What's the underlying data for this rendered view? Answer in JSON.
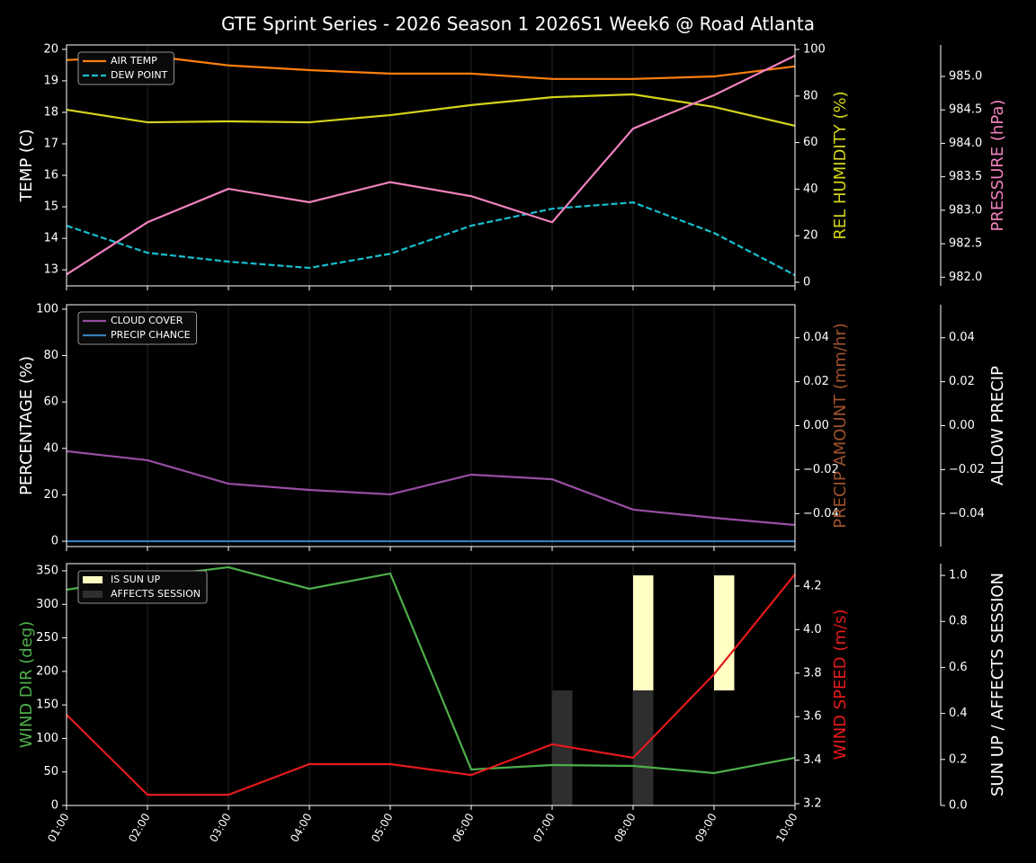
{
  "title": "GTE Sprint Series - 2026 Season 1 2026S1 Week6 @ Road Atlanta",
  "chart_data": [
    {
      "type": "line",
      "ylabel": "TEMP (C)",
      "ylabel_color": "#ffffff",
      "y2label": "REL HUMIDITY (%)",
      "y2label_color": "#d4d41c",
      "y3label": "PRESSURE (hPa)",
      "y3label_color": "#f081be",
      "ylim": [
        12.49,
        20.14
      ],
      "yticks": [
        13,
        14,
        15,
        16,
        17,
        18,
        19,
        20
      ],
      "y2lim": [
        -1.54,
        101.93
      ],
      "y2ticks": [
        0,
        20,
        40,
        60,
        80,
        100
      ],
      "y3lim": [
        981.87,
        985.47
      ],
      "y3ticks": [
        {
          "value": 982,
          "label": "982.0"
        },
        982.5,
        {
          "value": 983,
          "label": "983.0"
        },
        983.5,
        {
          "value": 984,
          "label": "984.0"
        },
        984.5,
        {
          "value": 985,
          "label": "985.0"
        }
      ],
      "legend": "upper left",
      "series": [
        {
          "name": "AIR TEMP",
          "color": "#ff7f0e",
          "axis": "y",
          "values": [
            19.66,
            19.8,
            19.49,
            19.34,
            19.23,
            19.23,
            19.06,
            19.06,
            19.14,
            19.46
          ]
        },
        {
          "name": "DEW POINT",
          "color": "#17becf",
          "linestyle": "dashed",
          "axis": "y",
          "values": [
            14.4,
            13.54,
            13.26,
            13.06,
            13.51,
            14.4,
            14.94,
            15.14,
            14.17,
            12.83
          ]
        },
        {
          "color": "#d4d41c",
          "axis": "y2",
          "values": [
            74.1,
            68.7,
            69.1,
            68.7,
            71.8,
            76.1,
            79.5,
            80.7,
            75.3,
            67.2
          ]
        },
        {
          "color": "#f081be",
          "axis": "y3",
          "values": [
            982.04,
            982.82,
            983.32,
            983.12,
            983.42,
            983.21,
            982.82,
            984.22,
            984.72,
            985.31
          ]
        }
      ]
    },
    {
      "type": "line",
      "ylabel": "PERCENTAGE (%)",
      "ylabel_color": "#ffffff",
      "y2label": "PRECIP AMOUNT (mm/hr)",
      "y2label_color": "#a0522d",
      "y3label": "ALLOW PRECIP",
      "y3label_color": "#ffffff",
      "ylim": [
        -2.3,
        101.9
      ],
      "yticks": [
        0,
        20,
        40,
        60,
        80,
        100
      ],
      "y2lim": [
        -0.055,
        0.055
      ],
      "y2ticks": [
        {
          "value": -0.04,
          "label": "−0.04"
        },
        {
          "value": -0.02,
          "label": "−0.02"
        },
        {
          "value": 0,
          "label": "0.00"
        },
        0.02,
        0.04
      ],
      "y3lim": [
        -0.055,
        0.055
      ],
      "y3ticks": [
        {
          "value": -0.04,
          "label": "−0.04"
        },
        {
          "value": -0.02,
          "label": "−0.02"
        },
        {
          "value": 0,
          "label": "0.00"
        },
        0.02,
        0.04
      ],
      "legend": "upper left",
      "series": [
        {
          "name": "CLOUD COVER",
          "color": "#984ea3",
          "axis": "y",
          "values": [
            38.8,
            34.9,
            24.8,
            22.1,
            20.2,
            28.7,
            26.7,
            13.6,
            10.1,
            7.0
          ]
        },
        {
          "name": "PRECIP CHANCE",
          "color": "#377eb8",
          "axis": "y",
          "values": [
            0,
            0,
            0,
            0,
            0,
            0,
            0,
            0,
            0,
            0
          ]
        }
      ]
    },
    {
      "type": "line",
      "ylabel": "WIND DIR (deg)",
      "ylabel_color": "#4daf4a",
      "y2label": "WIND SPEED (m/s)",
      "y2label_color": "#e41a1c",
      "y3label": "SUN UP / AFFECTS SESSION",
      "y3label_color": "#ffffff",
      "categories": [
        "01:00",
        "02:00",
        "03:00",
        "04:00",
        "05:00",
        "06:00",
        "07:00",
        "08:00",
        "09:00",
        "10:00"
      ],
      "ylim": [
        0,
        360.7
      ],
      "yticks": [
        0,
        50,
        100,
        150,
        200,
        250,
        300,
        350
      ],
      "y2lim": [
        3.192,
        4.303
      ],
      "y2ticks": [
        3.2,
        3.4,
        3.6,
        3.8,
        {
          "value": 4.0,
          "label": "4.0"
        },
        4.2
      ],
      "y3lim": [
        0,
        1.051
      ],
      "y3ticks": [
        {
          "value": 0,
          "label": "0.0"
        },
        0.2,
        0.4,
        0.6,
        0.8,
        {
          "value": 1.0,
          "label": "1.0"
        }
      ],
      "legend": "upper left",
      "series": [
        {
          "name": "IS SUN UP",
          "type": "bar",
          "color": "#ffffc4",
          "axis": "y3",
          "bottom": 0.5,
          "values": [
            0,
            0,
            0,
            0,
            0,
            0,
            0,
            0.5,
            0.5,
            0
          ]
        },
        {
          "name": "AFFECTS SESSION",
          "type": "bar",
          "color": "#2e2e2e",
          "axis": "y3",
          "values": [
            0,
            0,
            0,
            0,
            0,
            0,
            0.5,
            0.5,
            0,
            0
          ]
        },
        {
          "color": "#4daf4a",
          "axis": "y",
          "values": [
            321.8,
            340.6,
            355.4,
            323.2,
            346.0,
            53.6,
            60.3,
            59.0,
            48.3,
            71.1
          ]
        },
        {
          "color": "#e41a1c",
          "axis": "y2",
          "values": [
            3.609,
            3.241,
            3.241,
            3.382,
            3.382,
            3.332,
            3.473,
            3.411,
            3.795,
            4.254
          ]
        }
      ]
    }
  ]
}
